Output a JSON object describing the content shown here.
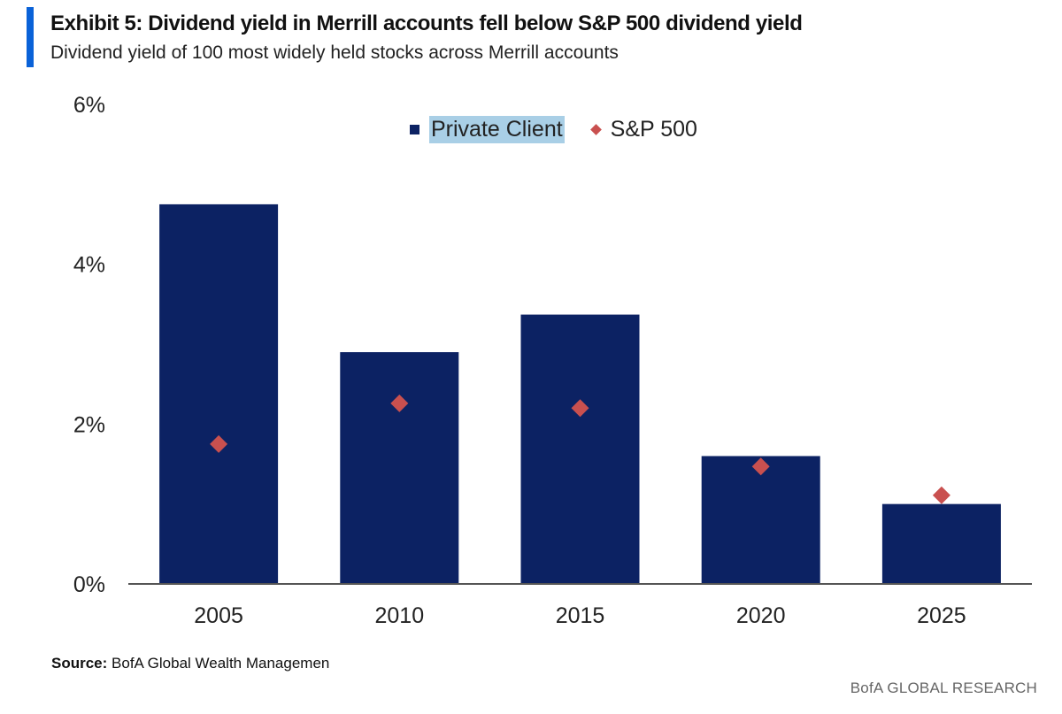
{
  "header": {
    "title": "Exhibit 5: Dividend yield in Merrill accounts fell below S&P 500 dividend yield",
    "subtitle": "Dividend yield of 100 most widely held stocks across Merrill accounts"
  },
  "legend": {
    "private_client": "Private Client",
    "sp500": "S&P 500"
  },
  "footer": {
    "source_label": "Source:",
    "source_text": " BofA Global Wealth Managemen",
    "brand": "BofA GLOBAL RESEARCH"
  },
  "colors": {
    "accent": "#0a62d8",
    "bar": "#0c2263",
    "marker": "#c9504f",
    "legend_highlight": "#a9cfe6"
  },
  "chart_data": {
    "type": "bar",
    "categories": [
      "2005",
      "2010",
      "2015",
      "2020",
      "2025"
    ],
    "series": [
      {
        "name": "Private Client",
        "type": "bar",
        "values": [
          4.75,
          2.9,
          3.37,
          1.6,
          1.0
        ]
      },
      {
        "name": "S&P 500",
        "type": "scatter",
        "marker": "diamond",
        "values": [
          1.75,
          2.26,
          2.2,
          1.47,
          1.11
        ]
      }
    ],
    "yticks": [
      "0%",
      "2%",
      "4%",
      "6%"
    ],
    "ylim": [
      0,
      6
    ],
    "grid": false,
    "legend_position": "top-center"
  }
}
